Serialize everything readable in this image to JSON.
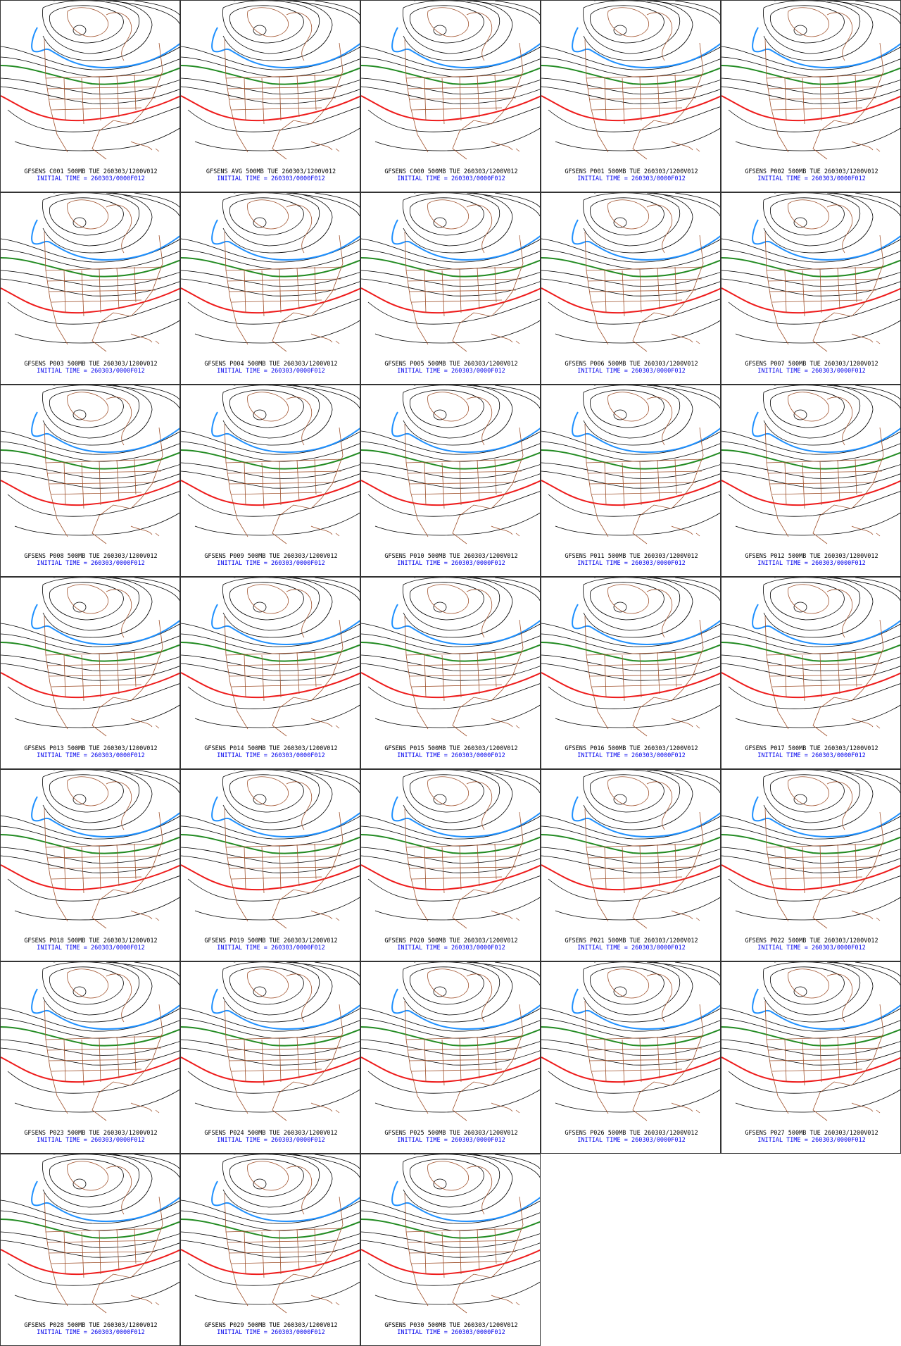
{
  "panels": [
    {
      "title": "GFSENS C001 500MB TUE 260303/1200V012",
      "subtitle": "INITIAL TIME = 260303/0000F012"
    },
    {
      "title": "GFSENS AVG 500MB TUE 260303/1200V012",
      "subtitle": "INITIAL TIME = 260303/0000F012"
    },
    {
      "title": "GFSENS C000 500MB TUE 260303/1200V012",
      "subtitle": "INITIAL TIME = 260303/0000F012"
    },
    {
      "title": "GFSENS P001 500MB TUE 260303/1200V012",
      "subtitle": "INITIAL TIME = 260303/0000F012"
    },
    {
      "title": "GFSENS P002 500MB TUE 260303/1200V012",
      "subtitle": "INITIAL TIME = 260303/0000F012"
    },
    {
      "title": "GFSENS P003 500MB TUE 260303/1200V012",
      "subtitle": "INITIAL TIME = 260303/0000F012"
    },
    {
      "title": "GFSENS P004 500MB TUE 260303/1200V012",
      "subtitle": "INITIAL TIME = 260303/0000F012"
    },
    {
      "title": "GFSENS P005 500MB TUE 260303/1200V012",
      "subtitle": "INITIAL TIME = 260303/0000F012"
    },
    {
      "title": "GFSENS P006 500MB TUE 260303/1200V012",
      "subtitle": "INITIAL TIME = 260303/0000F012"
    },
    {
      "title": "GFSENS P007 500MB TUE 260303/1200V012",
      "subtitle": "INITIAL TIME = 260303/0000F012"
    },
    {
      "title": "GFSENS P008 500MB TUE 260303/1200V012",
      "subtitle": "INITIAL TIME = 260303/0000F012"
    },
    {
      "title": "GFSENS P009 500MB TUE 260303/1200V012",
      "subtitle": "INITIAL TIME = 260303/0000F012"
    },
    {
      "title": "GFSENS P010 500MB TUE 260303/1200V012",
      "subtitle": "INITIAL TIME = 260303/0000F012"
    },
    {
      "title": "GFSENS P011 500MB TUE 260303/1200V012",
      "subtitle": "INITIAL TIME = 260303/0000F012"
    },
    {
      "title": "GFSENS P012 500MB TUE 260303/1200V012",
      "subtitle": "INITIAL TIME = 260303/0000F012"
    },
    {
      "title": "GFSENS P013 500MB TUE 260303/1200V012",
      "subtitle": "INITIAL TIME = 260303/0000F012"
    },
    {
      "title": "GFSENS P014 500MB TUE 260303/1200V012",
      "subtitle": "INITIAL TIME = 260303/0000F012"
    },
    {
      "title": "GFSENS P015 500MB TUE 260303/1200V012",
      "subtitle": "INITIAL TIME = 260303/0000F012"
    },
    {
      "title": "GFSENS P016 500MB TUE 260303/1200V012",
      "subtitle": "INITIAL TIME = 260303/0000F012"
    },
    {
      "title": "GFSENS P017 500MB TUE 260303/1200V012",
      "subtitle": "INITIAL TIME = 260303/0000F012"
    },
    {
      "title": "GFSENS P018 500MB TUE 260303/1200V012",
      "subtitle": "INITIAL TIME = 260303/0000F012"
    },
    {
      "title": "GFSENS P019 500MB TUE 260303/1200V012",
      "subtitle": "INITIAL TIME = 260303/0000F012"
    },
    {
      "title": "GFSENS P020 500MB TUE 260303/1200V012",
      "subtitle": "INITIAL TIME = 260303/0000F012"
    },
    {
      "title": "GFSENS P021 500MB TUE 260303/1200V012",
      "subtitle": "INITIAL TIME = 260303/0000F012"
    },
    {
      "title": "GFSENS P022 500MB TUE 260303/1200V012",
      "subtitle": "INITIAL TIME = 260303/0000F012"
    },
    {
      "title": "GFSENS P023 500MB TUE 260303/1200V012",
      "subtitle": "INITIAL TIME = 260303/0000F012"
    },
    {
      "title": "GFSENS P024 500MB TUE 260303/1200V012",
      "subtitle": "INITIAL TIME = 260303/0000F012"
    },
    {
      "title": "GFSENS P025 500MB TUE 260303/1200V012",
      "subtitle": "INITIAL TIME = 260303/0000F012"
    },
    {
      "title": "GFSENS P026 500MB TUE 260303/1200V012",
      "subtitle": "INITIAL TIME = 260303/0000F012"
    },
    {
      "title": "GFSENS P027 500MB TUE 260303/1200V012",
      "subtitle": "INITIAL TIME = 260303/0000F012"
    },
    {
      "title": "GFSENS P028 500MB TUE 260303/1200V012",
      "subtitle": "INITIAL TIME = 260303/0000F012"
    },
    {
      "title": "GFSENS P029 500MB TUE 260303/1200V012",
      "subtitle": "INITIAL TIME = 260303/0000F012"
    },
    {
      "title": "GFSENS P030 500MB TUE 260303/1200V012",
      "subtitle": "INITIAL TIME = 260303/0000F012"
    }
  ]
}
